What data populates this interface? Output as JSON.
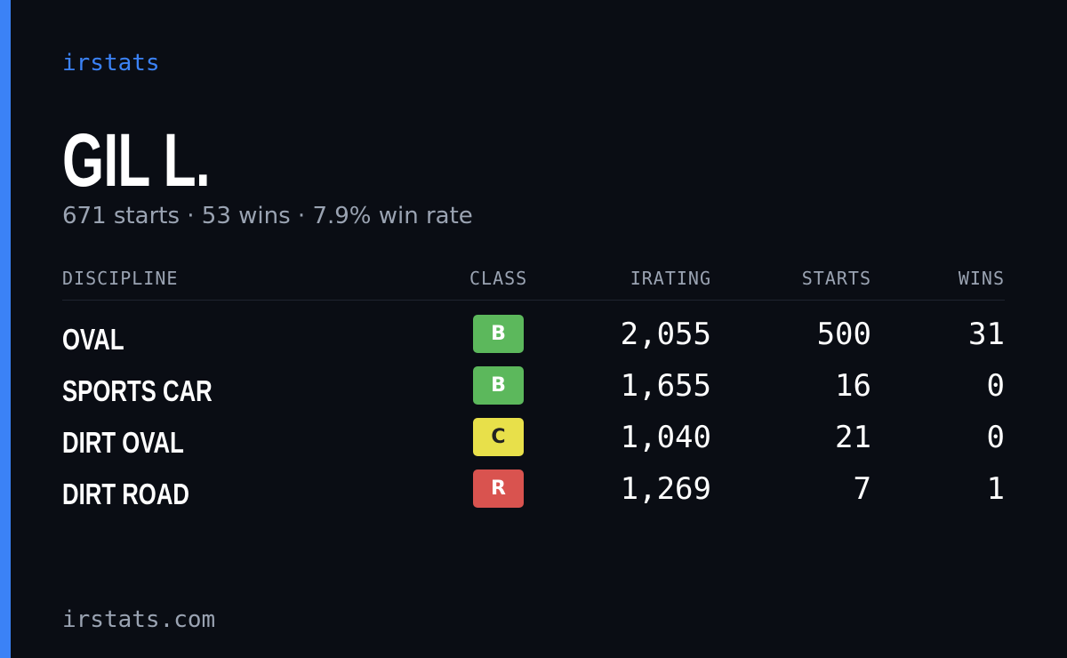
{
  "brand": "irstats",
  "profile": {
    "name": "GIL L.",
    "summary": "671 starts · 53 wins · 7.9% win rate"
  },
  "table": {
    "headers": [
      "DISCIPLINE",
      "CLASS",
      "IRATING",
      "STARTS",
      "WINS"
    ],
    "rows": [
      {
        "discipline": "OVAL",
        "class": "B",
        "class_color": "#5cb85c",
        "irating": "2,055",
        "starts": "500",
        "wins": "31"
      },
      {
        "discipline": "SPORTS CAR",
        "class": "B",
        "class_color": "#5cb85c",
        "irating": "1,655",
        "starts": "16",
        "wins": "0"
      },
      {
        "discipline": "DIRT OVAL",
        "class": "C",
        "class_color": "#e8e04a",
        "irating": "1,040",
        "starts": "21",
        "wins": "0"
      },
      {
        "discipline": "DIRT ROAD",
        "class": "R",
        "class_color": "#d9534f",
        "irating": "1,269",
        "starts": "7",
        "wins": "1"
      }
    ]
  },
  "footer": "irstats.com"
}
